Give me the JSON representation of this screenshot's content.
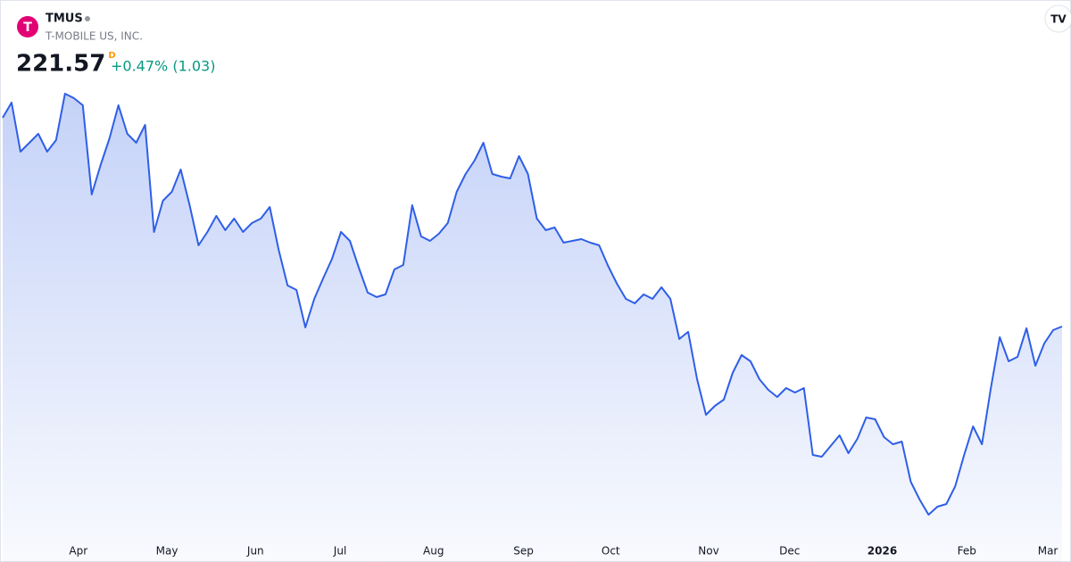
{
  "header": {
    "symbol": "TMUS",
    "name": "T-MOBILE US, INC.",
    "price": 221.57,
    "price_flag": "D",
    "change": "+0.47% (1.03)"
  },
  "chart_data": {
    "type": "area",
    "color": "#2f5fe6",
    "values": [
      263.69,
      266.75,
      256.85,
      258.65,
      260.45,
      256.85,
      259.19,
      268.55,
      267.65,
      266.21,
      248.21,
      254.15,
      259.55,
      266.21,
      260.45,
      258.65,
      262.25,
      240.65,
      246.95,
      248.75,
      253.25,
      246.05,
      237.95,
      240.65,
      243.89,
      241.01,
      243.35,
      240.65,
      242.45,
      243.35,
      245.69,
      237.05,
      229.85,
      228.95,
      221.39,
      227.15,
      231.29,
      235.25,
      240.65,
      238.85,
      233.45,
      228.41,
      227.51,
      228.05,
      233.09,
      233.99,
      246.05,
      239.75,
      238.85,
      240.29,
      242.45,
      248.75,
      252.35,
      255.05,
      258.65,
      252.35,
      251.81,
      251.45,
      255.95,
      252.35,
      243.35,
      241.01,
      241.55,
      238.49,
      238.85,
      239.21,
      238.49,
      237.95,
      233.81,
      230.21,
      227.15,
      226.25,
      228.05,
      227.15,
      229.49,
      227.15,
      219.05,
      220.49,
      210.95,
      203.75,
      205.55,
      206.81,
      212.21,
      215.81,
      214.55,
      210.95,
      208.79,
      207.35,
      209.15,
      208.25,
      209.15,
      195.65,
      195.29,
      197.45,
      199.61,
      196.01,
      198.89,
      203.21,
      202.85,
      199.25,
      197.81,
      198.35,
      190.25,
      186.65,
      183.59,
      185.21,
      185.75,
      189.35,
      195.65,
      201.41,
      197.81,
      209.15,
      219.41,
      214.55,
      215.45,
      221.21,
      213.65,
      218.15,
      220.85,
      221.57
    ],
    "xticks": [
      {
        "value": 8.5,
        "label": "Apr"
      },
      {
        "value": 18.45,
        "label": "May"
      },
      {
        "value": 28.4,
        "label": "Jun"
      },
      {
        "value": 37.9,
        "label": "Jul"
      },
      {
        "value": 48.4,
        "label": "Aug"
      },
      {
        "value": 58.5,
        "label": "Sep"
      },
      {
        "value": 68.3,
        "label": "Oct"
      },
      {
        "value": 79.3,
        "label": "Nov"
      },
      {
        "value": 88.4,
        "label": "Dec"
      },
      {
        "value": 98.8,
        "label": "2026"
      },
      {
        "value": 108.3,
        "label": "Feb"
      },
      {
        "value": 117.4,
        "label": "Mar"
      }
    ]
  }
}
